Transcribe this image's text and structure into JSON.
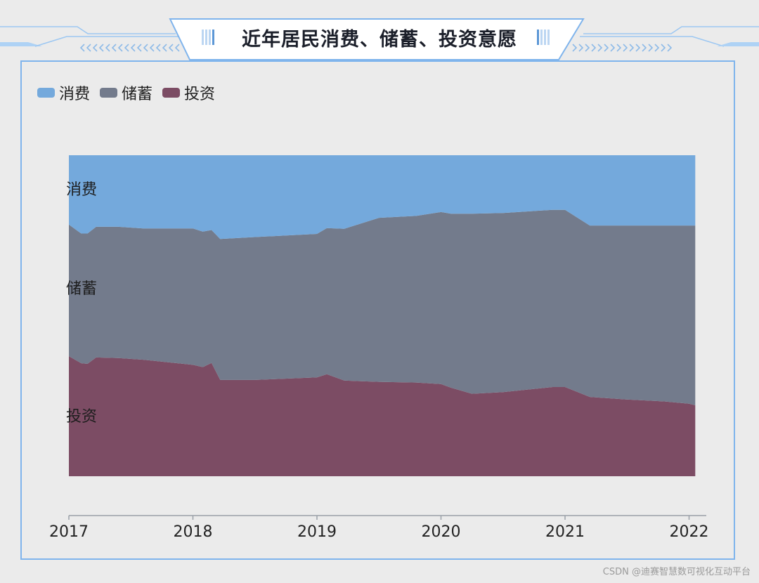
{
  "page_title": "近年居民消费、储蓄、投资意愿",
  "watermark": "CSDN @迪赛智慧数可视化互动平台",
  "colors": {
    "consumption": "#74a9dc",
    "savings": "#737b8c",
    "investment": "#7c4c64",
    "frame": "#7fb4ec",
    "axis": "#9aa0a8"
  },
  "chart_data": {
    "type": "area",
    "stacked": true,
    "normalized": true,
    "title": "",
    "xlabel": "",
    "ylabel": "",
    "legend_position": "top-left",
    "grid": false,
    "xlim": [
      2017,
      2022.05
    ],
    "ylim": [
      0,
      100
    ],
    "x_ticks": [
      "2017",
      "2018",
      "2019",
      "2020",
      "2021",
      "2022"
    ],
    "x": [
      2017.0,
      2017.1,
      2017.15,
      2017.22,
      2017.4,
      2017.6,
      2018.0,
      2018.08,
      2018.15,
      2018.22,
      2018.5,
      2019.0,
      2019.08,
      2019.22,
      2019.5,
      2019.8,
      2020.0,
      2020.08,
      2020.25,
      2020.5,
      2020.9,
      2021.0,
      2021.2,
      2021.5,
      2021.8,
      2022.0,
      2022.05
    ],
    "series": [
      {
        "name": "投资",
        "values": [
          37.4,
          35.2,
          35.0,
          37.0,
          36.8,
          36.3,
          34.7,
          34.0,
          35.3,
          30.0,
          30.0,
          30.8,
          31.8,
          29.8,
          29.4,
          29.2,
          28.7,
          27.6,
          25.7,
          26.2,
          27.8,
          27.8,
          24.7,
          23.9,
          23.3,
          22.6,
          22.1
        ]
      },
      {
        "name": "储蓄",
        "values": [
          41.0,
          40.4,
          40.6,
          40.7,
          40.9,
          40.9,
          42.5,
          42.2,
          41.4,
          43.9,
          44.5,
          44.7,
          45.5,
          47.3,
          51.1,
          51.9,
          53.6,
          54.2,
          56.1,
          55.8,
          55.2,
          55.2,
          53.4,
          54.2,
          54.8,
          55.5,
          56.0
        ]
      },
      {
        "name": "消费",
        "values": [
          21.6,
          24.4,
          24.4,
          22.3,
          22.3,
          22.8,
          22.8,
          23.8,
          23.3,
          26.1,
          25.5,
          24.5,
          22.7,
          22.9,
          19.5,
          18.9,
          17.7,
          18.2,
          18.2,
          18.0,
          17.0,
          17.0,
          21.9,
          21.9,
          21.9,
          21.9,
          21.9
        ]
      }
    ],
    "series_labels": [
      "消费",
      "储蓄",
      "投资"
    ]
  }
}
